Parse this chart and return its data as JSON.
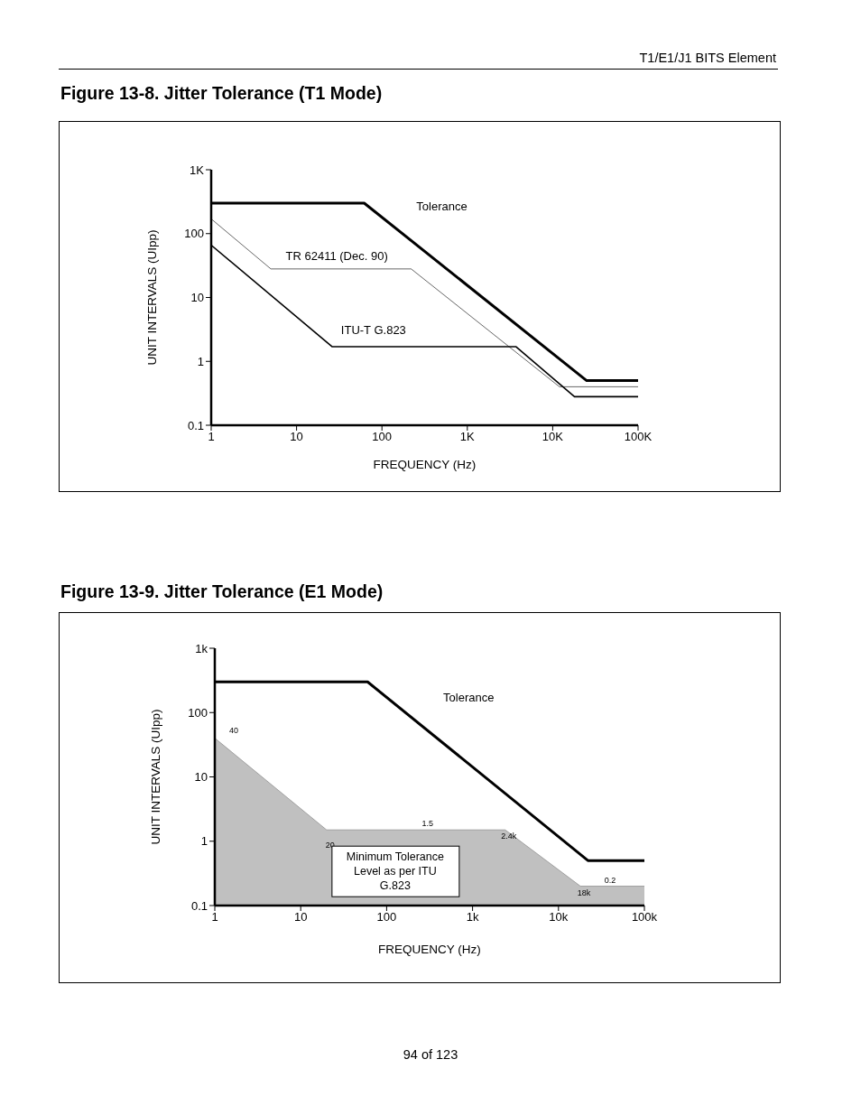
{
  "chart_data": [
    {
      "type": "line",
      "title": "Figure 13-8. Jitter Tolerance (T1 Mode)",
      "xlabel": "FREQUENCY (Hz)",
      "ylabel": "UNIT INTERVALS (UIpp)",
      "log": "xy",
      "xlim": [
        1,
        100000
      ],
      "ylim": [
        0.1,
        1000
      ],
      "xticks": [
        1,
        10,
        100,
        {
          "value": 1000,
          "label": "1K"
        },
        {
          "value": 10000,
          "label": "10K"
        },
        {
          "value": 100000,
          "label": "100K"
        }
      ],
      "yticks": [
        0.1,
        1,
        10,
        100,
        {
          "value": 1000,
          "label": "1K"
        }
      ],
      "annotations": [
        "T1/E1/J1 BITS Element"
      ],
      "series": [
        {
          "name": "Tolerance",
          "color": "#000000",
          "x": [
            1,
            62,
            25000,
            100000
          ],
          "values": [
            300,
            300,
            0.5,
            0.5
          ]
        },
        {
          "name": "TR 62411 (Dec. 90)",
          "color": "#000000",
          "x": [
            1,
            5,
            220,
            12000,
            100000
          ],
          "values": [
            170,
            28,
            28,
            0.4,
            0.4
          ]
        },
        {
          "name": "ITU-T G.823",
          "color": "#000000",
          "x": [
            1,
            26,
            3700,
            18000,
            100000
          ],
          "values": [
            66,
            1.7,
            1.7,
            0.28,
            0.28
          ]
        }
      ]
    },
    {
      "type": "line",
      "title": "Figure 13-9. Jitter Tolerance (E1 Mode)",
      "xlabel": "FREQUENCY (Hz)",
      "ylabel": "UNIT INTERVALS (UIpp)",
      "log": "xy",
      "xlim": [
        1,
        100000
      ],
      "ylim": [
        0.1,
        1000
      ],
      "xticks": [
        1,
        10,
        100,
        {
          "value": 1000,
          "label": "1k"
        },
        {
          "value": 10000,
          "label": "10k"
        },
        {
          "value": 100000,
          "label": "100k"
        }
      ],
      "yticks": [
        0.1,
        1,
        10,
        100,
        {
          "value": 1000,
          "label": "1k"
        }
      ],
      "annotations": [
        "94 of 123",
        {
          "text": "40",
          "x": 1,
          "y": 40
        },
        {
          "text": "1.5",
          "x": 300,
          "y": 1.5
        },
        {
          "text": "0.2",
          "x": 40000,
          "y": 0.2
        },
        {
          "text": "20",
          "x": 20,
          "y": 1.5
        },
        {
          "text": "2.4k",
          "x": 2400,
          "y": 1.5
        },
        {
          "text": "18k",
          "x": 18000,
          "y": 0.2
        }
      ],
      "series": [
        {
          "name": "Tolerance",
          "color": "#000000",
          "x": [
            1,
            60,
            22000,
            100000
          ],
          "values": [
            300,
            300,
            0.5,
            0.5
          ]
        },
        {
          "type": "area",
          "name": "Minimum Tolerance Level as per ITU G.823",
          "color": "#c0c0c0",
          "x": [
            1,
            20,
            2400,
            18000,
            100000
          ],
          "values": [
            40,
            1.5,
            1.5,
            0.2,
            0.2
          ]
        }
      ]
    }
  ]
}
